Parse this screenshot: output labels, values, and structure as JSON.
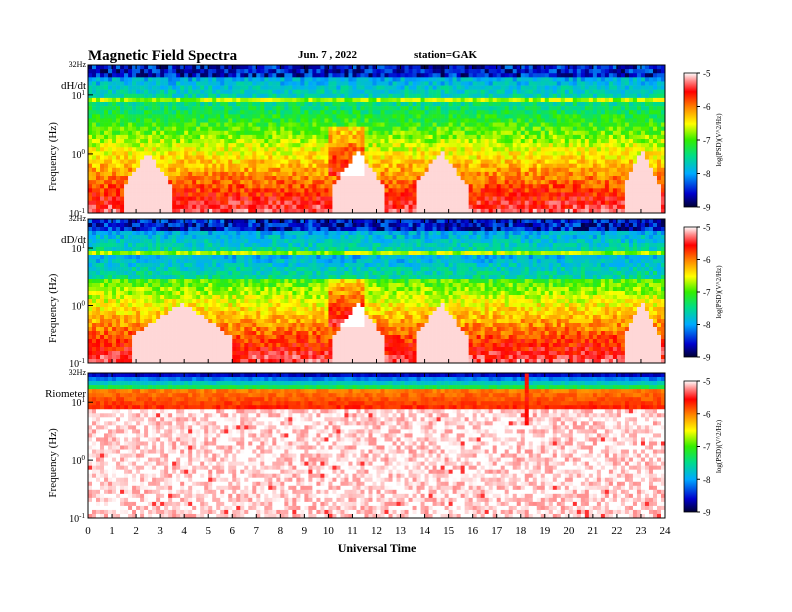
{
  "header": {
    "title": "Magnetic  Field  Spectra",
    "date": "Jun.  7  , 2022",
    "station": "station=GAK"
  },
  "colorbar": {
    "label": "log(PSD)(V^2/Hz)",
    "ticks": [
      "-5",
      "-6",
      "-7",
      "-8",
      "-9"
    ],
    "range": [
      -9,
      -5
    ],
    "colors": [
      "#000033",
      "#0000cc",
      "#00aaff",
      "#00dd88",
      "#33ee00",
      "#ffff00",
      "#ff8800",
      "#ff0000",
      "#ff8888",
      "#ffffff"
    ]
  },
  "chart_data": [
    {
      "type": "heatmap",
      "panel_label": "dH/dt",
      "xlabel": "",
      "ylabel": "Frequency  (Hz)",
      "y_top_label": "32Hz",
      "y_ticks": [
        "10^1",
        "10^0",
        "10^-1"
      ],
      "xlim": [
        0,
        24
      ],
      "ylim_hz": [
        0.1,
        32
      ],
      "log_y": true,
      "features": {
        "bright_band_hz": 8,
        "quiet_gaps_ut": [
          [
            1.5,
            3.5
          ],
          [
            10.2,
            12.3
          ],
          [
            13.6,
            15.8
          ],
          [
            22.3,
            23.8
          ]
        ]
      }
    },
    {
      "type": "heatmap",
      "panel_label": "dD/dt",
      "xlabel": "",
      "ylabel": "Frequency  (Hz)",
      "y_top_label": "32Hz",
      "y_ticks": [
        "10^1",
        "10^0",
        "10^-1"
      ],
      "xlim": [
        0,
        24
      ],
      "ylim_hz": [
        0.1,
        32
      ],
      "log_y": true,
      "features": {
        "bright_band_hz": 8,
        "quiet_gaps_ut": [
          [
            1.8,
            6.0
          ],
          [
            10.2,
            12.3
          ],
          [
            13.6,
            15.8
          ],
          [
            22.3,
            23.8
          ]
        ]
      }
    },
    {
      "type": "heatmap",
      "panel_label": "Riometer",
      "xlabel": "Universal Time",
      "ylabel": "Frequency  (Hz)",
      "y_top_label": "32Hz",
      "y_ticks": [
        "10^1",
        "10^0",
        "10^-1"
      ],
      "x_ticks": [
        "0",
        "1",
        "2",
        "3",
        "4",
        "5",
        "6",
        "7",
        "8",
        "9",
        "10",
        "11",
        "12",
        "13",
        "14",
        "15",
        "16",
        "17",
        "18",
        "19",
        "20",
        "21",
        "22",
        "23",
        "24"
      ],
      "xlim": [
        0,
        24
      ],
      "ylim_hz": [
        0.1,
        32
      ],
      "log_y": true,
      "features": {
        "bright_band_hz": 8,
        "spike_ut": 18.2
      }
    }
  ]
}
